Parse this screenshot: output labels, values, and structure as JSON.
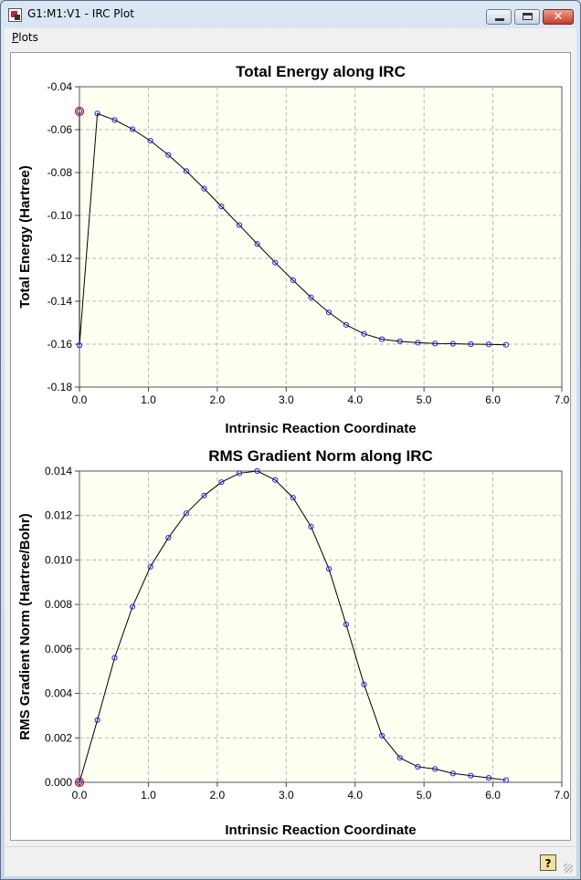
{
  "window": {
    "title": "G1:M1:V1 - IRC Plot",
    "close_glyph": "✕"
  },
  "menu": {
    "plots_first": "P",
    "plots_rest": "lots"
  },
  "colors": {
    "plot_bg": "#fffff2",
    "grid": "#b8b8b8",
    "line": "#000000",
    "point": "#2222dd",
    "highlight": "#cc0000"
  },
  "help_button": {
    "label": "?"
  },
  "chart_data": [
    {
      "type": "line",
      "title": "Total Energy along IRC",
      "xlabel": "Intrinsic Reaction Coordinate",
      "ylabel": "Total Energy (Hartree)",
      "xlim": [
        0.0,
        7.0
      ],
      "ylim": [
        -0.18,
        -0.04
      ],
      "xticks": [
        "0.0",
        "1.0",
        "2.0",
        "3.0",
        "4.0",
        "5.0",
        "6.0",
        "7.0"
      ],
      "yticks": [
        "-0.04",
        "-0.06",
        "-0.08",
        "-0.10",
        "-0.12",
        "-0.14",
        "-0.16",
        "-0.18"
      ],
      "x": [
        0.0,
        0.0,
        0.26,
        0.51,
        0.77,
        1.03,
        1.29,
        1.55,
        1.81,
        2.06,
        2.32,
        2.58,
        2.84,
        3.1,
        3.36,
        3.62,
        3.87,
        4.13,
        4.39,
        4.65,
        4.91,
        5.16,
        5.42,
        5.68,
        5.94,
        6.19
      ],
      "y": [
        -0.0515,
        -0.1605,
        -0.0525,
        -0.0555,
        -0.0598,
        -0.0652,
        -0.0718,
        -0.0793,
        -0.0875,
        -0.0958,
        -0.1045,
        -0.1133,
        -0.122,
        -0.1302,
        -0.1382,
        -0.1452,
        -0.151,
        -0.1552,
        -0.1577,
        -0.1587,
        -0.1593,
        -0.1597,
        -0.1598,
        -0.16,
        -0.1601,
        -0.1603
      ],
      "highlight_index": 0,
      "grid": true
    },
    {
      "type": "line",
      "title": "RMS Gradient Norm along IRC",
      "xlabel": "Intrinsic Reaction Coordinate",
      "ylabel": "RMS Gradient Norm (Hartree/Bohr)",
      "xlim": [
        0.0,
        7.0
      ],
      "ylim": [
        0.0,
        0.014
      ],
      "xticks": [
        "0.0",
        "1.0",
        "2.0",
        "3.0",
        "4.0",
        "5.0",
        "6.0",
        "7.0"
      ],
      "yticks": [
        "0.014",
        "0.012",
        "0.010",
        "0.008",
        "0.006",
        "0.004",
        "0.002",
        "0.000"
      ],
      "x": [
        0.0,
        0.26,
        0.51,
        0.77,
        1.03,
        1.29,
        1.55,
        1.81,
        2.06,
        2.32,
        2.58,
        2.84,
        3.1,
        3.36,
        3.62,
        3.87,
        4.13,
        4.39,
        4.65,
        4.91,
        5.16,
        5.42,
        5.68,
        5.94,
        6.19
      ],
      "y": [
        0.0,
        0.0028,
        0.0056,
        0.0079,
        0.0097,
        0.011,
        0.0121,
        0.0129,
        0.0135,
        0.0139,
        0.014,
        0.0136,
        0.0128,
        0.0115,
        0.0096,
        0.0071,
        0.0044,
        0.0021,
        0.0011,
        0.0007,
        0.0006,
        0.0004,
        0.0003,
        0.0002,
        0.0001
      ],
      "highlight_index": 0,
      "grid": true
    }
  ]
}
